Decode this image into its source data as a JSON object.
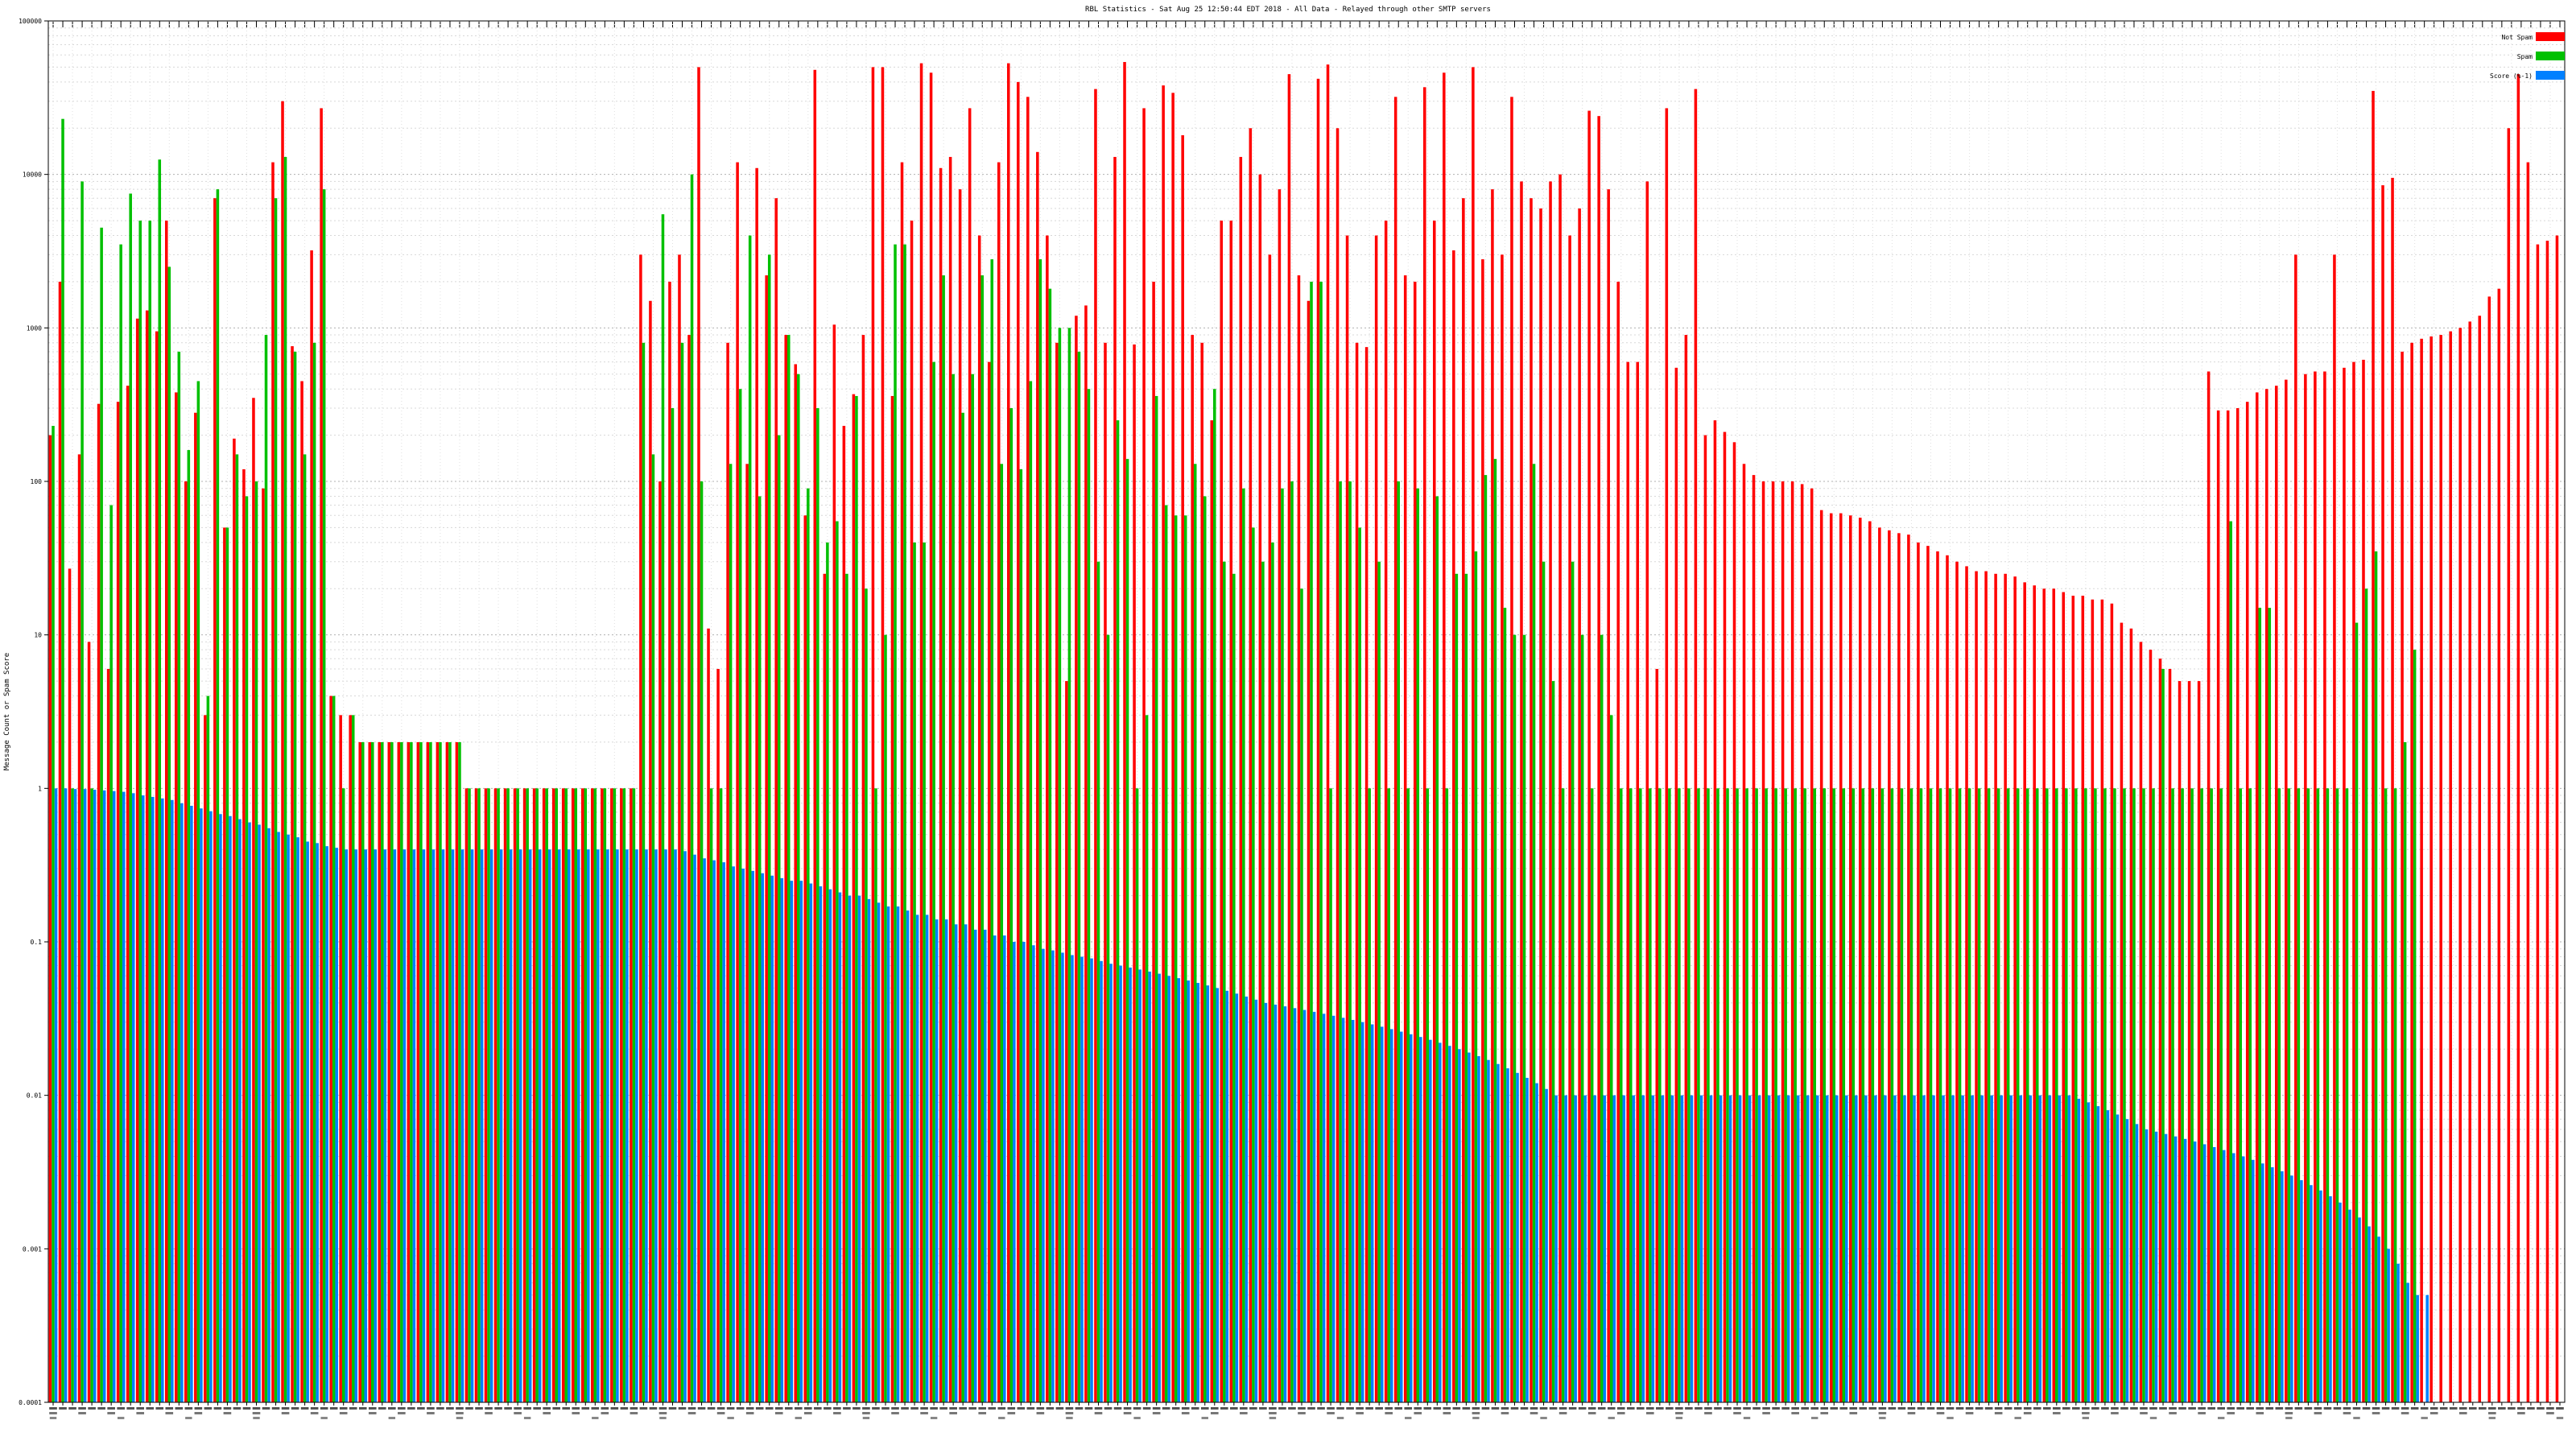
{
  "chart_data": {
    "type": "bar",
    "title": "RBL Statistics - Sat Aug 25 12:50:44 EDT 2018 - All Data - Relayed through other SMTP servers",
    "ylabel": "Message Count or Spam Score",
    "xlabel": "",
    "yscale": "log",
    "ylim": [
      0.0001,
      100000
    ],
    "y_ticks": [
      {
        "value": 100000,
        "label": "100000"
      },
      {
        "value": 10000,
        "label": "10000"
      },
      {
        "value": 1000,
        "label": "1000"
      },
      {
        "value": 100,
        "label": "100"
      },
      {
        "value": 10,
        "label": "10"
      },
      {
        "value": 1,
        "label": "1"
      },
      {
        "value": 0.1,
        "label": "0.1"
      },
      {
        "value": 0.01,
        "label": "0.01"
      },
      {
        "value": 0.001,
        "label": "0.001"
      },
      {
        "value": 0.0001,
        "label": "0.0001"
      }
    ],
    "grid": true,
    "legend_position": "top-right",
    "series": [
      {
        "name": "Not Spam",
        "color": "#ff0000"
      },
      {
        "name": "Spam",
        "color": "#00c000"
      },
      {
        "name": "Score (%-1)",
        "color": "#0080ff"
      }
    ],
    "values": {
      "not_spam": [
        200,
        2000,
        27,
        150,
        9,
        320,
        6,
        330,
        420,
        1150,
        1300,
        950,
        5000,
        380,
        100,
        280,
        3,
        7000,
        50,
        190,
        120,
        350,
        90,
        12000,
        30000,
        760,
        450,
        3200,
        27000,
        4,
        3,
        3,
        2,
        2,
        2,
        2,
        2,
        2,
        2,
        2,
        2,
        2,
        2,
        1,
        1,
        1,
        1,
        1,
        1,
        1,
        1,
        1,
        1,
        1,
        1,
        1,
        1,
        1,
        1,
        1,
        1,
        3000,
        1500,
        100,
        2000,
        3000,
        900,
        50000,
        11,
        6,
        800,
        12000,
        130,
        11000,
        2200,
        7000,
        900,
        580,
        60,
        48000,
        25,
        1050,
        230,
        370,
        900,
        50000,
        50000,
        360,
        12000,
        5000,
        53000,
        46000,
        11000,
        13000,
        8000,
        27000,
        4000,
        600,
        12000,
        53000,
        40000,
        32000,
        14000,
        4000,
        800,
        5,
        1200,
        1400,
        36000,
        800,
        13000,
        54000,
        780,
        27000,
        2000,
        38000,
        34000,
        18000,
        900,
        800,
        250,
        5000,
        5000,
        13000,
        20000,
        10000,
        3000,
        8000,
        45000,
        2200,
        1500,
        42000,
        52000,
        20000,
        4000,
        800,
        750,
        4000,
        5000,
        32000,
        2200,
        2000,
        37000,
        5000,
        46000,
        3200,
        7000,
        50000,
        2800,
        8000,
        3000,
        32000,
        9000,
        7000,
        6000,
        9000,
        10000,
        4000,
        6000,
        26000,
        24000,
        8000,
        2000,
        600,
        600,
        9000,
        6,
        27000,
        550,
        900,
        36000,
        200,
        250,
        210,
        180,
        130,
        110,
        100,
        100,
        100,
        100,
        96,
        90,
        65,
        62,
        62,
        60,
        58,
        55,
        50,
        48,
        46,
        45,
        40,
        38,
        35,
        33,
        30,
        28,
        26,
        26,
        25,
        25,
        24,
        22,
        21,
        20,
        20,
        19,
        18,
        18,
        17,
        17,
        16,
        12,
        11,
        9,
        8,
        7,
        6,
        5,
        5,
        5,
        520,
        290,
        290,
        300,
        330,
        380,
        400,
        420,
        460,
        3000,
        500,
        520,
        520,
        3000,
        550,
        600,
        620,
        35000,
        8500,
        9500,
        700,
        800,
        850,
        880,
        900,
        950,
        1000,
        1100,
        1200,
        1600,
        1800,
        20000,
        45000,
        12000,
        3500,
        3700,
        4000
      ],
      "spam": [
        230,
        23000,
        1,
        9000,
        1,
        4500,
        70,
        3500,
        7500,
        5000,
        5000,
        12500,
        2500,
        700,
        160,
        450,
        4,
        8000,
        50,
        150,
        80,
        100,
        900,
        7000,
        13000,
        700,
        150,
        800,
        8000,
        4,
        1,
        3,
        2,
        2,
        2,
        2,
        2,
        2,
        2,
        2,
        2,
        2,
        2,
        1,
        1,
        1,
        1,
        1,
        1,
        1,
        1,
        1,
        1,
        1,
        1,
        1,
        1,
        1,
        1,
        1,
        1,
        800,
        150,
        5500,
        300,
        800,
        10000,
        100,
        1,
        1,
        130,
        400,
        4000,
        80,
        3000,
        200,
        900,
        500,
        90,
        300,
        40,
        55,
        25,
        360,
        20,
        1,
        10,
        3500,
        3500,
        40,
        40,
        600,
        2200,
        500,
        280,
        500,
        2200,
        2800,
        130,
        300,
        120,
        450,
        2800,
        1800,
        1000,
        1000,
        700,
        400,
        30,
        10,
        250,
        140,
        1,
        3,
        360,
        70,
        60,
        60,
        130,
        80,
        400,
        30,
        25,
        90,
        50,
        30,
        40,
        90,
        100,
        20,
        2000,
        2000,
        1,
        100,
        100,
        50,
        1,
        30,
        1,
        100,
        1,
        90,
        1,
        80,
        1,
        25,
        25,
        35,
        110,
        140,
        15,
        10,
        10,
        130,
        30,
        5,
        1,
        30,
        10,
        1,
        10,
        3,
        1,
        1,
        1,
        1,
        1,
        1,
        1,
        1,
        1,
        1,
        1,
        1,
        1,
        1,
        1,
        1,
        1,
        1,
        1,
        1,
        1,
        1,
        1,
        1,
        1,
        1,
        1,
        1,
        1,
        1,
        1,
        1,
        1,
        1,
        1,
        1,
        1,
        1,
        1,
        1,
        1,
        1,
        1,
        1,
        1,
        1,
        1,
        1,
        1,
        1,
        1,
        1,
        1,
        1,
        1,
        1,
        6,
        1,
        1,
        1,
        1,
        1,
        1,
        55,
        1,
        1,
        15,
        15,
        1,
        1,
        1,
        1,
        1,
        1,
        1,
        1,
        12,
        20,
        35,
        1,
        1,
        2,
        8
      ],
      "score": [
        1,
        1,
        0.99,
        0.99,
        0.98,
        0.97,
        0.96,
        0.95,
        0.93,
        0.9,
        0.88,
        0.86,
        0.84,
        0.8,
        0.77,
        0.74,
        0.71,
        0.68,
        0.66,
        0.63,
        0.6,
        0.58,
        0.55,
        0.52,
        0.5,
        0.48,
        0.45,
        0.44,
        0.42,
        0.41,
        0.4,
        0.4,
        0.4,
        0.4,
        0.4,
        0.4,
        0.4,
        0.4,
        0.4,
        0.4,
        0.4,
        0.4,
        0.4,
        0.4,
        0.4,
        0.4,
        0.4,
        0.4,
        0.4,
        0.4,
        0.4,
        0.4,
        0.4,
        0.4,
        0.4,
        0.4,
        0.4,
        0.4,
        0.4,
        0.4,
        0.4,
        0.4,
        0.4,
        0.4,
        0.4,
        0.39,
        0.37,
        0.35,
        0.34,
        0.33,
        0.31,
        0.3,
        0.29,
        0.28,
        0.27,
        0.26,
        0.25,
        0.25,
        0.24,
        0.23,
        0.22,
        0.21,
        0.2,
        0.2,
        0.19,
        0.18,
        0.17,
        0.17,
        0.16,
        0.15,
        0.15,
        0.14,
        0.14,
        0.13,
        0.13,
        0.12,
        0.12,
        0.11,
        0.11,
        0.1,
        0.1,
        0.095,
        0.09,
        0.088,
        0.085,
        0.082,
        0.08,
        0.078,
        0.075,
        0.072,
        0.07,
        0.068,
        0.066,
        0.064,
        0.062,
        0.06,
        0.058,
        0.056,
        0.054,
        0.052,
        0.05,
        0.048,
        0.046,
        0.044,
        0.042,
        0.04,
        0.039,
        0.038,
        0.037,
        0.036,
        0.035,
        0.034,
        0.033,
        0.032,
        0.031,
        0.03,
        0.029,
        0.028,
        0.027,
        0.026,
        0.025,
        0.024,
        0.023,
        0.022,
        0.021,
        0.02,
        0.019,
        0.018,
        0.017,
        0.016,
        0.015,
        0.014,
        0.013,
        0.012,
        0.011,
        0.01,
        0.01,
        0.01,
        0.01,
        0.01,
        0.01,
        0.01,
        0.01,
        0.01,
        0.01,
        0.01,
        0.01,
        0.01,
        0.01,
        0.01,
        0.01,
        0.01,
        0.01,
        0.01,
        0.01,
        0.01,
        0.01,
        0.01,
        0.01,
        0.01,
        0.01,
        0.01,
        0.01,
        0.01,
        0.01,
        0.01,
        0.01,
        0.01,
        0.01,
        0.01,
        0.01,
        0.01,
        0.01,
        0.01,
        0.01,
        0.01,
        0.01,
        0.01,
        0.01,
        0.01,
        0.01,
        0.01,
        0.01,
        0.01,
        0.01,
        0.01,
        0.01,
        0.01,
        0.01,
        0.0095,
        0.009,
        0.0085,
        0.008,
        0.0075,
        0.007,
        0.0065,
        0.006,
        0.0058,
        0.0056,
        0.0054,
        0.0052,
        0.005,
        0.0048,
        0.0046,
        0.0044,
        0.0042,
        0.004,
        0.0038,
        0.0036,
        0.0034,
        0.0032,
        0.003,
        0.0028,
        0.0026,
        0.0024,
        0.0022,
        0.002,
        0.0018,
        0.0016,
        0.0014,
        0.0012,
        0.001,
        0.0008,
        0.0006,
        0.0005,
        0.0005
      ]
    }
  }
}
